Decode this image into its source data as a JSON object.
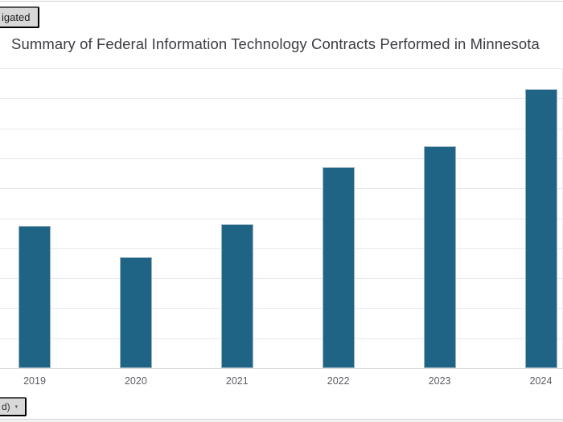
{
  "page": {
    "top_left_button_label": "igated",
    "bottom_left_dropdown": {
      "label": "d)",
      "caret_icon": "▾"
    }
  },
  "chart_data": {
    "type": "bar",
    "title": "Summary of Federal Information Technology Contracts Performed in Minnesota",
    "categories": [
      "2019",
      "2020",
      "2021",
      "2022",
      "2023",
      "2024"
    ],
    "values": [
      4.75,
      3.7,
      4.8,
      6.7,
      7.4,
      9.3
    ],
    "xlabel": "",
    "ylabel": "",
    "ylim": [
      0,
      10
    ],
    "grid": true,
    "gridline_divisions": 10,
    "legend": false,
    "bar_color": "#1f6385",
    "note": "y-axis tick labels are cropped outside the visible screenshot; values estimated in gridline units (1 unit per horizontal gridline)"
  }
}
